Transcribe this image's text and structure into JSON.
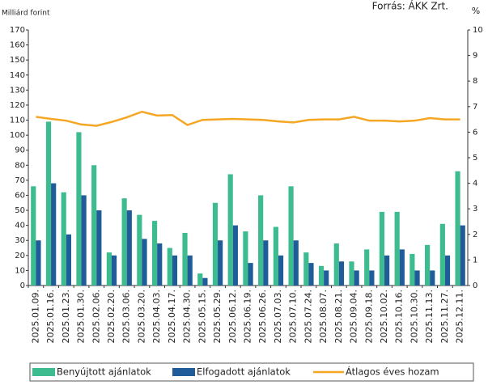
{
  "chart_data": {
    "type": "bar_line",
    "y_label": "Milliárd forint",
    "y2_label": "%",
    "source": "Forrás:  ÁKK Zrt.",
    "categories": [
      "2025.01.09.",
      "2025.01.16.",
      "2025.01.23.",
      "2025.01.30.",
      "2025.02.06.",
      "2025.02.20.",
      "2025.03.06.",
      "2025.03.20.",
      "2025.04.03.",
      "2025.04.17.",
      "2025.04.30.",
      "2025.05.15.",
      "2025.05.29.",
      "2025.06.12.",
      "2025.06.19.",
      "2025.06.26.",
      "2025.07.03.",
      "2025.07.10.",
      "2025.07.24.",
      "2025.08.07.",
      "2025.08.21.",
      "2025.09.04.",
      "2025.09.18.",
      "2025.10.02.",
      "2025.10.16.",
      "2025.10.30.",
      "2025.11.13.",
      "2025.11.27.",
      "2025.12.11."
    ],
    "series": [
      {
        "name": "Benyújtott ajánlatok",
        "color": "#3dbd8f",
        "type": "bar",
        "values": [
          66,
          109,
          62,
          102,
          80,
          22,
          58,
          47,
          43,
          25,
          35,
          8,
          55,
          74,
          36,
          60,
          39,
          66,
          22,
          13,
          28,
          16,
          24,
          49,
          49,
          21,
          27,
          41,
          76
        ]
      },
      {
        "name": "Elfogadott ajánlatok",
        "color": "#1f5c99",
        "type": "bar",
        "values": [
          30,
          68,
          34,
          60,
          50,
          20,
          50,
          31,
          28,
          20,
          20,
          5,
          30,
          40,
          15,
          30,
          20,
          30,
          15,
          10,
          16,
          10,
          10,
          20,
          24,
          10,
          10,
          20,
          40
        ]
      },
      {
        "name": "Átlagos éves hozam",
        "color": "#f5a623",
        "type": "line",
        "axis": "y2",
        "values": [
          6.6,
          6.52,
          6.45,
          6.3,
          6.25,
          6.4,
          6.58,
          6.8,
          6.65,
          6.67,
          6.28,
          6.48,
          6.5,
          6.52,
          6.5,
          6.48,
          6.42,
          6.38,
          6.48,
          6.5,
          6.5,
          6.6,
          6.45,
          6.45,
          6.42,
          6.45,
          6.55,
          6.5,
          6.5
        ]
      }
    ],
    "ylim": [
      0,
      170
    ],
    "yticks": [
      0,
      10,
      20,
      30,
      40,
      50,
      60,
      70,
      80,
      90,
      100,
      110,
      120,
      130,
      140,
      150,
      160,
      170
    ],
    "y2lim": [
      0,
      10
    ],
    "y2ticks": [
      0,
      1,
      2,
      3,
      4,
      5,
      6,
      7,
      8,
      9,
      10
    ]
  }
}
